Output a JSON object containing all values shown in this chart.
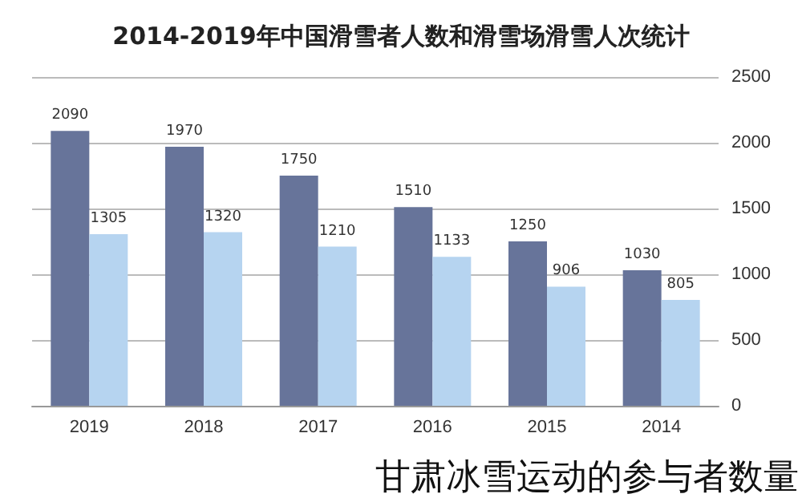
{
  "chart_data": {
    "type": "bar",
    "title": "2014-2019年中国滑雪者人数和滑雪场滑雪人次统计",
    "categories": [
      "2019",
      "2018",
      "2017",
      "2016",
      "2015",
      "2014"
    ],
    "series": [
      {
        "color": "#67749a",
        "values": [
          2090,
          1970,
          1750,
          1510,
          1250,
          1030
        ]
      },
      {
        "color": "#b6d4f0",
        "values": [
          1305,
          1320,
          1210,
          1133,
          906,
          805
        ]
      }
    ],
    "ylim": [
      0,
      2500
    ],
    "yticks": [
      0,
      500,
      1000,
      1500,
      2000,
      2500
    ],
    "grid": "y",
    "data_labels": true,
    "annotations": [
      "甘肃冰雪运动的参与者数量"
    ]
  }
}
